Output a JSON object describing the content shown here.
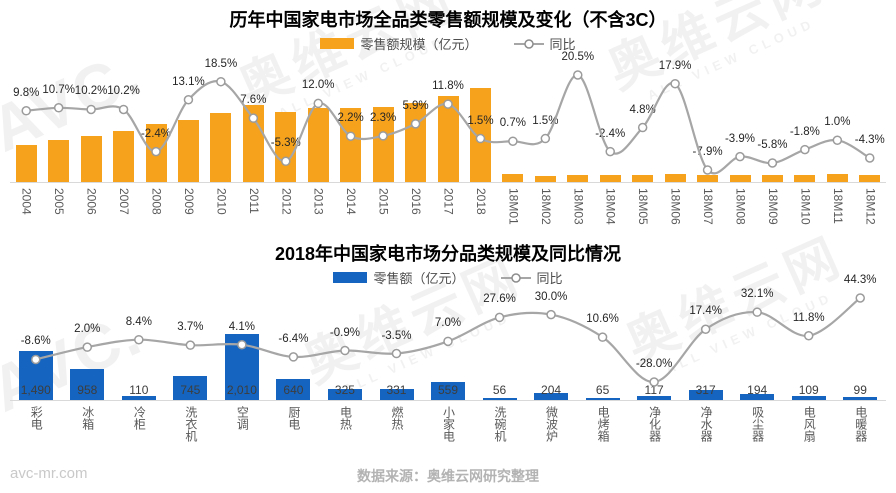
{
  "brand": {
    "watermark_cn": "奥维云网",
    "watermark_en": "ALL VIEW CLOUD",
    "watermark_avc": "AVC."
  },
  "footer": {
    "site": "avc-mr.com",
    "source": "数据来源：奥维云网研究整理"
  },
  "chart_data": [
    {
      "type": "bar+line",
      "title": "历年中国家电市场全品类零售额规模及变化（不含3C）",
      "legend": [
        {
          "label": "零售额规模（亿元）",
          "marker": "bar"
        },
        {
          "label": "同比",
          "marker": "line"
        }
      ],
      "colors": {
        "bar": "#F6A21C",
        "line": "#A6A6A6"
      },
      "grid": false,
      "legend_position": "top",
      "categories": [
        "2004",
        "2005",
        "2006",
        "2007",
        "2008",
        "2009",
        "2010",
        "2011",
        "2012",
        "2013",
        "2014",
        "2015",
        "2016",
        "2017",
        "2018",
        "18M01",
        "18M02",
        "18M03",
        "18M04",
        "18M05",
        "18M06",
        "18M07",
        "18M08",
        "18M09",
        "18M10",
        "18M11",
        "18M12"
      ],
      "series": [
        {
          "name": "零售额规模（亿元）",
          "type": "bar",
          "unit": "亿元",
          "values_estimated_from_bar_heights": true,
          "values": [
            3200,
            3600,
            3950,
            4400,
            5000,
            5350,
            5950,
            6650,
            6050,
            6400,
            6400,
            6450,
            6800,
            7400,
            8100,
            700,
            560,
            650,
            620,
            640,
            700,
            620,
            580,
            600,
            620,
            700,
            640
          ]
        },
        {
          "name": "同比",
          "type": "line",
          "unit": "%",
          "values": [
            9.8,
            10.7,
            10.2,
            10.2,
            -2.4,
            13.1,
            18.5,
            7.6,
            -5.3,
            12.0,
            2.2,
            2.3,
            5.9,
            11.8,
            1.5,
            0.7,
            1.5,
            20.5,
            -2.4,
            4.8,
            17.9,
            -7.9,
            -3.9,
            -5.8,
            -1.8,
            1.0,
            -4.3
          ]
        }
      ]
    },
    {
      "type": "bar+line",
      "title": "2018年中国家电市场分品类规模及同比情况",
      "legend": [
        {
          "label": "零售额（亿元）",
          "marker": "bar"
        },
        {
          "label": "同比",
          "marker": "line"
        }
      ],
      "colors": {
        "bar": "#1565C0",
        "line": "#A6A6A6"
      },
      "grid": false,
      "legend_position": "top",
      "categories": [
        "彩电",
        "冰箱",
        "冷柜",
        "洗衣机",
        "空调",
        "厨电",
        "电热",
        "燃热",
        "小家电",
        "洗碗机",
        "微波炉",
        "电烤箱",
        "净化器",
        "净水器",
        "吸尘器",
        "电风扇",
        "电暖器"
      ],
      "series": [
        {
          "name": "零售额（亿元）",
          "type": "bar",
          "unit": "亿元",
          "values": [
            1490,
            958,
            110,
            745,
            2010,
            640,
            325,
            331,
            559,
            56,
            204,
            65,
            117,
            317,
            194,
            109,
            99
          ],
          "value_labels": [
            "1,490",
            "958",
            "110",
            "745",
            "2,010",
            "640",
            "325",
            "331",
            "559",
            "56",
            "204",
            "65",
            "117",
            "317",
            "194",
            "109",
            "99"
          ]
        },
        {
          "name": "同比",
          "type": "line",
          "unit": "%",
          "values": [
            -8.6,
            2.0,
            8.4,
            3.7,
            4.1,
            -6.4,
            -0.9,
            -3.5,
            7.0,
            27.6,
            30.0,
            10.6,
            -28.0,
            17.4,
            32.1,
            11.8,
            44.3
          ]
        }
      ]
    }
  ]
}
